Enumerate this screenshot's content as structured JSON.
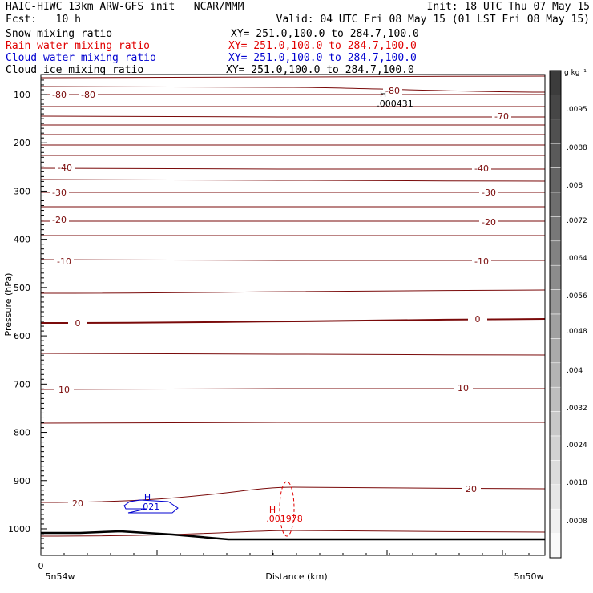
{
  "header": {
    "line1_left": "HAIC-HIWC 13km ARW-GFS init   NCAR/MMM",
    "line1_right": "Init: 18 UTC Thu 07 May 15",
    "fcst": "Fcst:   10 h",
    "valid": "Valid: 04 UTC Fri 08 May 15 (01 LST Fri 08 May 15)"
  },
  "fields": [
    {
      "name": "Snow mixing ratio",
      "xy": "XY= 251.0,100.0 to 284.7,100.0",
      "color": "#000000"
    },
    {
      "name": "Rain water mixing ratio",
      "xy": "XY= 251.0,100.0 to 284.7,100.0",
      "color": "#e00000"
    },
    {
      "name": "Cloud water mixing ratio",
      "xy": "XY= 251.0,100.0 to 284.7,100.0",
      "color": "#0000d0"
    },
    {
      "name": "Cloud ice mixing ratio",
      "xy": "XY= 251.0,100.0 to 284.7,100.0",
      "color": "#000000"
    }
  ],
  "chart_data": {
    "type": "contour",
    "ylabel": "Pressure (hPa)",
    "xlabel": "Distance (km)",
    "ylim": [
      1050,
      60
    ],
    "yticks": [
      100,
      200,
      300,
      400,
      500,
      600,
      700,
      800,
      900,
      1000
    ],
    "x_start_label": "0",
    "x_left_label": "5n54w",
    "x_right_label": "5n50w",
    "colorbar": {
      "unit": "g kg⁻¹",
      "labels": [
        ".0095",
        ".0088",
        ".008",
        ".0072",
        ".0064",
        ".0056",
        ".0048",
        ".004",
        ".0032",
        ".0024",
        ".0018",
        ".0008"
      ]
    },
    "temperature_labels": [
      "-80",
      "-80",
      "-80",
      "-70",
      "-40",
      "-40",
      "-30",
      "-30",
      "-20",
      "-20",
      "-10",
      "-10",
      "0",
      "0",
      "10",
      "10",
      "20",
      "20"
    ],
    "maxima": [
      {
        "mark": "H",
        "value": ".000431",
        "color": "#000000"
      },
      {
        "mark": "H",
        "value": ".021",
        "color": "#0000d0"
      },
      {
        "mark": "H",
        "value": ".001978",
        "color": "#e00000"
      }
    ],
    "contour_color": "#7a0a0a"
  }
}
